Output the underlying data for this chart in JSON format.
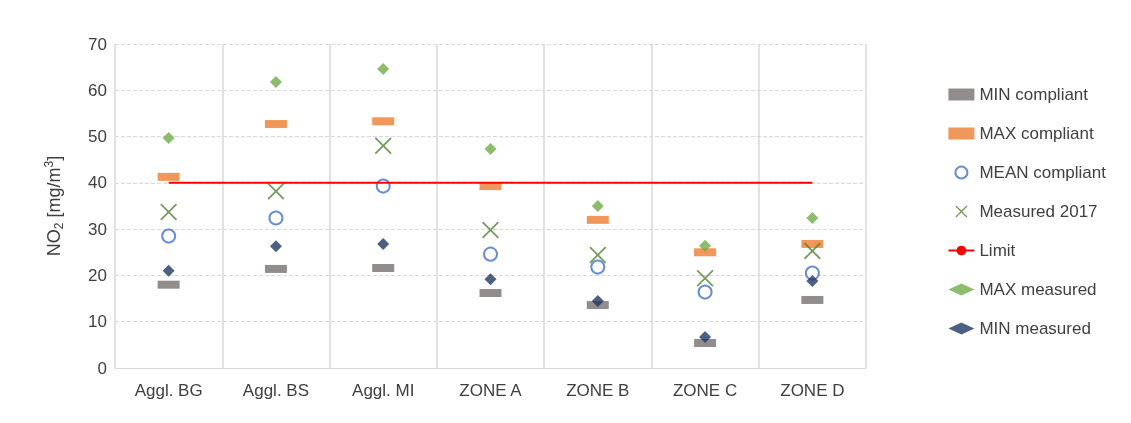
{
  "chart_data": {
    "type": "scatter",
    "ylabel": "NO$_{2}$ [mg/m$^{3}$]",
    "categories": [
      "Aggl. BG",
      "Aggl. BS",
      "Aggl. MI",
      "ZONE A",
      "ZONE B",
      "ZONE C",
      "ZONE D"
    ],
    "ylim": [
      0,
      70
    ],
    "yticks": [
      0,
      10,
      20,
      30,
      40,
      50,
      60,
      70
    ],
    "grid": true,
    "legend": "right",
    "series": [
      {
        "name": "MIN compliant",
        "color": "#767171",
        "marker": "square",
        "values": [
          18,
          21.4,
          21.6,
          16.2,
          13.6,
          5.4,
          14.7
        ]
      },
      {
        "name": "MAX compliant",
        "color": "#ed7d31",
        "marker": "square",
        "values": [
          41.3,
          52.7,
          53.3,
          39.3,
          32,
          25,
          26.8
        ]
      },
      {
        "name": "MEAN compliant",
        "color": "#4472c4",
        "marker": "circle",
        "values": [
          28.5,
          32.4,
          39.3,
          24.6,
          21.8,
          16.4,
          20.5
        ]
      },
      {
        "name": "Measured 2017",
        "color": "#548235",
        "marker": "cross",
        "values": [
          33.7,
          38.2,
          48,
          29.8,
          24.4,
          19.4,
          25.3
        ]
      },
      {
        "name": "Limit",
        "type": "line",
        "color": "#ff0000",
        "marker": "none",
        "line_style": "solid",
        "values": [
          40,
          40,
          40,
          40,
          40,
          40,
          40
        ]
      },
      {
        "name": "MAX measured",
        "color": "#70ad47",
        "marker": "diamond",
        "values": [
          49.7,
          61.8,
          64.6,
          47.3,
          35,
          26.4,
          32.4
        ]
      },
      {
        "name": "MIN measured",
        "color": "#203864",
        "marker": "diamond",
        "values": [
          21,
          26.3,
          26.8,
          19.2,
          14.5,
          6.7,
          18.8
        ]
      }
    ]
  }
}
